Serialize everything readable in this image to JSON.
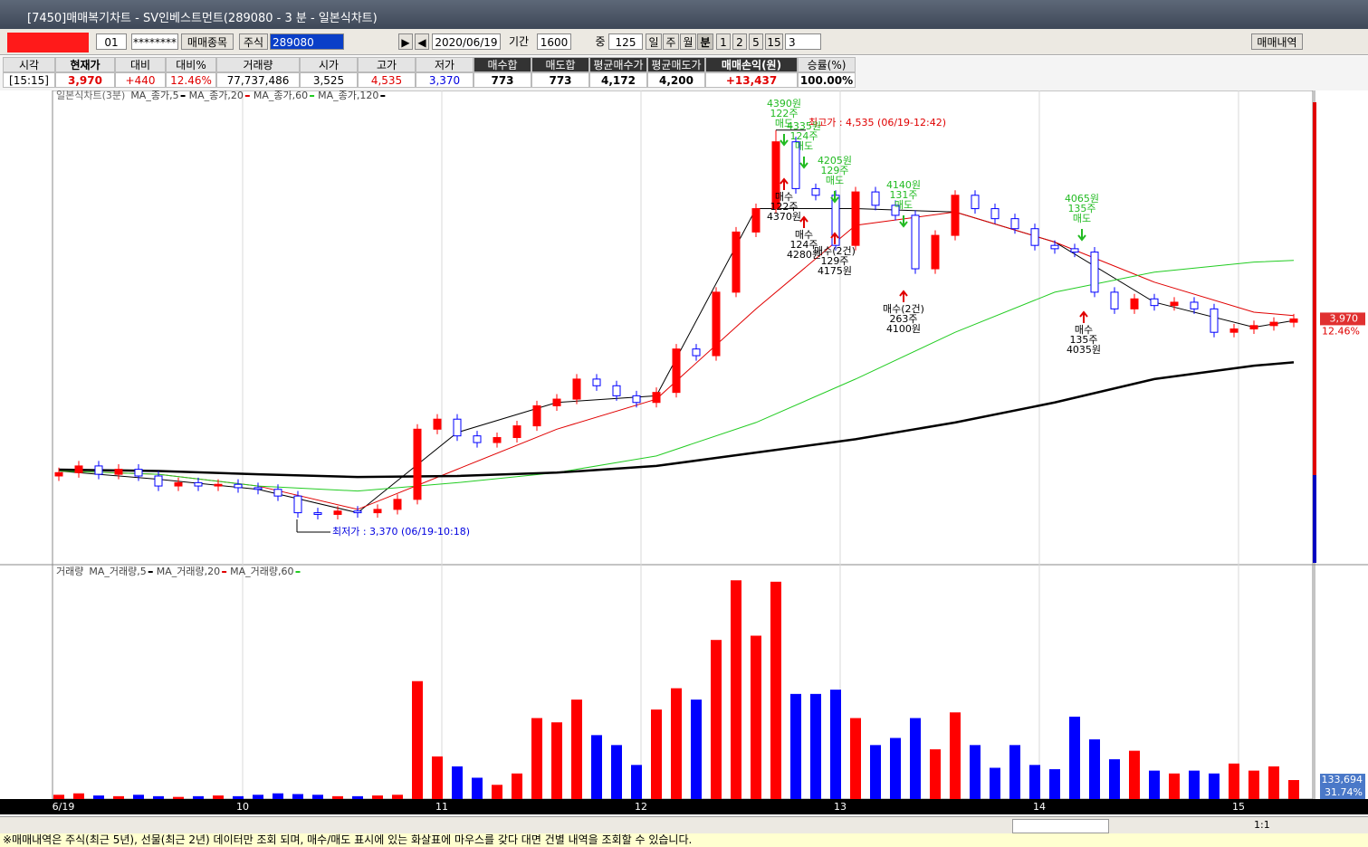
{
  "window": {
    "title": "[7450]매매복기차트 - SV인베스트먼트(289080 - 3 분 - 일본식차트)"
  },
  "toolbar": {
    "items": [
      "01",
      "********",
      "매매종목",
      "주식",
      "289080",
      "2020/06/19",
      "기간",
      "1600",
      "중",
      "125",
      "일",
      "주",
      "월",
      "분",
      "1",
      "2",
      "5",
      "15",
      "3",
      "매매내역"
    ]
  },
  "summary": {
    "headers": [
      "시각",
      "현재가",
      "대비",
      "대비%",
      "거래량",
      "시가",
      "고가",
      "저가",
      "매수합",
      "매도합",
      "평균매수가",
      "평균매도가",
      "매매손익(원)",
      "승률(%)"
    ],
    "values": [
      "[15:15]",
      "3,970",
      "+440",
      "12.46%",
      "77,737,486",
      "3,525",
      "4,535",
      "3,370",
      "773",
      "773",
      "4,172",
      "4,200",
      "+13,437",
      "100.00%"
    ]
  },
  "chart_data": [
    {
      "type": "candlestick",
      "title": "일본식차트(3분)",
      "x_labels": [
        "6/19",
        "10",
        "11",
        "12",
        "13",
        "14",
        "15"
      ],
      "ylim": [
        3240,
        4640
      ],
      "up_color": "#ff0000",
      "down_color": "#0000ff",
      "open": [
        3500,
        3510,
        3530,
        3505,
        3520,
        3500,
        3470,
        3480,
        3470,
        3475,
        3465,
        3460,
        3440,
        3390,
        3385,
        3395,
        3390,
        3400,
        3430,
        3640,
        3670,
        3620,
        3600,
        3615,
        3650,
        3710,
        3730,
        3790,
        3770,
        3740,
        3720,
        3750,
        3880,
        3860,
        4050,
        4230,
        4300,
        4500,
        4360,
        4340,
        4190,
        4350,
        4310,
        4280,
        4120,
        4220,
        4340,
        4300,
        4270,
        4240,
        4190,
        4180,
        4170,
        4050,
        4000,
        4030,
        4010,
        4020,
        4000,
        3930,
        3940,
        3950,
        3960
      ],
      "high": [
        3525,
        3545,
        3545,
        3535,
        3535,
        3515,
        3495,
        3495,
        3490,
        3490,
        3480,
        3475,
        3455,
        3405,
        3410,
        3410,
        3415,
        3445,
        3655,
        3685,
        3685,
        3635,
        3630,
        3665,
        3725,
        3745,
        3805,
        3805,
        3785,
        3755,
        3765,
        3895,
        3895,
        4065,
        4245,
        4315,
        4535,
        4515,
        4375,
        4355,
        4365,
        4365,
        4325,
        4295,
        4235,
        4355,
        4355,
        4315,
        4285,
        4255,
        4205,
        4195,
        4185,
        4065,
        4045,
        4045,
        4035,
        4035,
        4015,
        3955,
        3965,
        3975,
        3985
      ],
      "low": [
        3485,
        3495,
        3490,
        3490,
        3485,
        3455,
        3455,
        3455,
        3455,
        3450,
        3445,
        3425,
        3375,
        3370,
        3370,
        3375,
        3375,
        3385,
        3415,
        3625,
        3605,
        3585,
        3585,
        3600,
        3635,
        3695,
        3715,
        3755,
        3725,
        3705,
        3705,
        3735,
        3845,
        3845,
        4035,
        4215,
        4285,
        4345,
        4325,
        4175,
        4175,
        4295,
        4265,
        4105,
        4105,
        4205,
        4285,
        4255,
        4225,
        4175,
        4165,
        4155,
        4035,
        3985,
        3985,
        3995,
        3995,
        3985,
        3915,
        3915,
        3925,
        3935,
        3945
      ],
      "close": [
        3510,
        3530,
        3505,
        3520,
        3500,
        3470,
        3480,
        3470,
        3475,
        3465,
        3460,
        3440,
        3390,
        3385,
        3395,
        3390,
        3400,
        3430,
        3640,
        3670,
        3620,
        3600,
        3615,
        3650,
        3710,
        3730,
        3790,
        3770,
        3740,
        3720,
        3750,
        3880,
        3860,
        4050,
        4230,
        4300,
        4500,
        4360,
        4340,
        4190,
        4350,
        4310,
        4280,
        4120,
        4220,
        4340,
        4300,
        4270,
        4240,
        4190,
        4180,
        4170,
        4050,
        4000,
        4030,
        4010,
        4020,
        4000,
        3930,
        3940,
        3950,
        3960,
        3970
      ],
      "ma_x": [
        0,
        5,
        10,
        15,
        20,
        25,
        30,
        35,
        40,
        45,
        50,
        55,
        60,
        62
      ],
      "moving_averages": [
        {
          "name": "MA_종가,5",
          "color": "#000000",
          "values": [
            3515,
            3490,
            3460,
            3390,
            3630,
            3720,
            3740,
            4300,
            4300,
            4290,
            4200,
            4020,
            3945,
            3965
          ]
        },
        {
          "name": "MA_종가,20",
          "color": "#e00000",
          "values": [
            3515,
            3505,
            3470,
            3400,
            3520,
            3640,
            3730,
            4000,
            4250,
            4290,
            4200,
            4080,
            3990,
            3980
          ]
        },
        {
          "name": "MA_종가,60",
          "color": "#22cc22",
          "values": [
            3515,
            3505,
            3470,
            3455,
            3480,
            3510,
            3560,
            3660,
            3790,
            3930,
            4050,
            4110,
            4140,
            4145
          ]
        },
        {
          "name": "MA_종가,120",
          "color": "#000000",
          "values": [
            3519,
            3515,
            3505,
            3497,
            3500,
            3510,
            3530,
            3570,
            3610,
            3660,
            3720,
            3790,
            3830,
            3840
          ]
        }
      ],
      "high_label": "최고가 : 4,535 (06/19-12:42)",
      "low_label": "최저가 : 3,370 (06/19-10:18)",
      "last_label": "3,970",
      "change_label": "12.46%",
      "sells": [
        [
          "4390원",
          "122주",
          "매도"
        ],
        [
          "4335원",
          "124주",
          "매도"
        ],
        [
          "4205원",
          "129주",
          "매도"
        ],
        [
          "4140원",
          "131주",
          "매도"
        ],
        [
          "4065원",
          "135주",
          "매도"
        ]
      ],
      "buys": [
        [
          "매수",
          "122주",
          "4370원"
        ],
        [
          "매수",
          "124주",
          "4280원"
        ],
        [
          "매수(2건)",
          "129주",
          "4175원"
        ],
        [
          "매수(2건)",
          "263주",
          "4100원"
        ],
        [
          "매수",
          "135주",
          "4035원"
        ]
      ]
    },
    {
      "type": "bar",
      "title": "거래량",
      "ylim": [
        0,
        1580000
      ],
      "legend": [
        {
          "name": "MA_거래량,5",
          "color": "#000000"
        },
        {
          "name": "MA_거래량,20",
          "color": "#e00000"
        },
        {
          "name": "MA_거래량,60",
          "color": "#22cc22"
        }
      ],
      "values": [
        30000,
        40000,
        25000,
        20000,
        30000,
        20000,
        15000,
        20000,
        25000,
        20000,
        30000,
        40000,
        35000,
        30000,
        20000,
        20000,
        25000,
        30000,
        830000,
        300000,
        230000,
        150000,
        100000,
        180000,
        570000,
        540000,
        700000,
        450000,
        380000,
        240000,
        630000,
        780000,
        700000,
        1120000,
        1540000,
        1150000,
        1530000,
        740000,
        740000,
        770000,
        570000,
        380000,
        430000,
        570000,
        350000,
        610000,
        380000,
        220000,
        380000,
        240000,
        210000,
        580000,
        420000,
        280000,
        340000,
        200000,
        180000,
        200000,
        180000,
        250000,
        200000,
        230000,
        133694
      ],
      "last_label": "133,694",
      "change_label": "31.74%"
    }
  ],
  "scrollbar": {
    "zoom": "1:1"
  },
  "footer": {
    "text": "※매매내역은 주식(최근 5년), 선물(최근 2년) 데이터만 조회 되며, 매수/매도 표시에 있는 화살표에 마우스를 갖다 대면 건별 내역을 조회할 수 있습니다."
  }
}
